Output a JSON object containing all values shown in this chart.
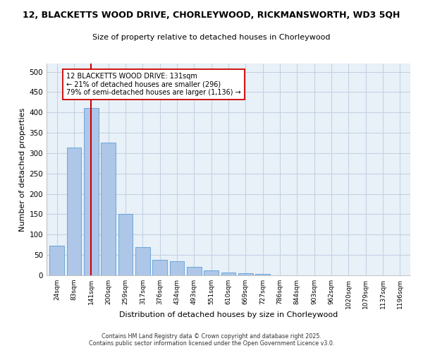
{
  "title": "12, BLACKETTS WOOD DRIVE, CHORLEYWOOD, RICKMANSWORTH, WD3 5QH",
  "subtitle": "Size of property relative to detached houses in Chorleywood",
  "xlabel": "Distribution of detached houses by size in Chorleywood",
  "ylabel": "Number of detached properties",
  "bar_labels": [
    "24sqm",
    "83sqm",
    "141sqm",
    "200sqm",
    "259sqm",
    "317sqm",
    "376sqm",
    "434sqm",
    "493sqm",
    "551sqm",
    "610sqm",
    "669sqm",
    "727sqm",
    "786sqm",
    "844sqm",
    "903sqm",
    "962sqm",
    "1020sqm",
    "1079sqm",
    "1137sqm",
    "1196sqm"
  ],
  "bar_values": [
    72,
    313,
    410,
    325,
    150,
    70,
    38,
    35,
    20,
    13,
    7,
    5,
    3,
    0,
    0,
    0,
    0,
    0,
    0,
    0,
    0
  ],
  "bar_color": "#aec6e8",
  "bar_edge_color": "#5a9fd4",
  "vline_x": 2,
  "vline_color": "#cc0000",
  "annotation_line1": "12 BLACKETTS WOOD DRIVE: 131sqm",
  "annotation_line2": "← 21% of detached houses are smaller (296)",
  "annotation_line3": "79% of semi-detached houses are larger (1,136) →",
  "annotation_box_edge_color": "#cc0000",
  "annotation_box_bg_color": "#ffffff",
  "ylim": [
    0,
    520
  ],
  "yticks": [
    0,
    50,
    100,
    150,
    200,
    250,
    300,
    350,
    400,
    450,
    500
  ],
  "footer_line1": "Contains HM Land Registry data © Crown copyright and database right 2025.",
  "footer_line2": "Contains public sector information licensed under the Open Government Licence v3.0.",
  "background_color": "#ffffff",
  "plot_bg_color": "#e8f0f8",
  "grid_color": "#c0cfe0"
}
